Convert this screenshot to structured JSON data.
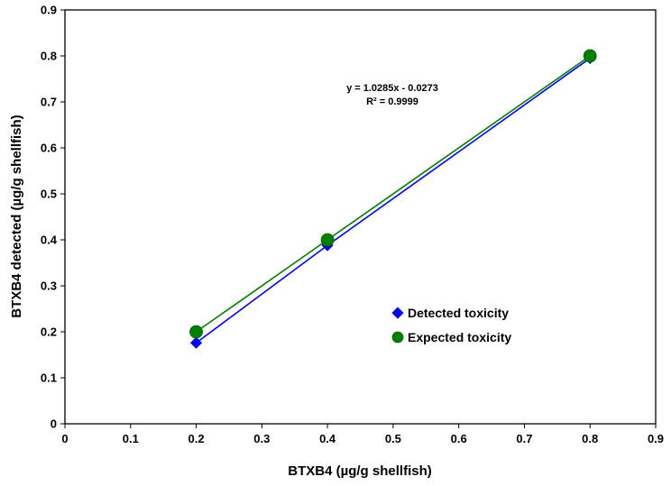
{
  "chart_data": {
    "type": "scatter",
    "title": "",
    "xlabel": "BTXB4 (µg/g shellfish)",
    "ylabel": "BTXB4 detected (µg/g shellfish)",
    "xlim": [
      0,
      0.9
    ],
    "ylim": [
      0,
      0.9
    ],
    "x_ticks": [
      "0",
      "0.1",
      "0.2",
      "0.3",
      "0.4",
      "0.5",
      "0.6",
      "0.7",
      "0.8",
      "0.9"
    ],
    "y_ticks": [
      "0",
      "0.1",
      "0.2",
      "0.3",
      "0.4",
      "0.5",
      "0.6",
      "0.7",
      "0.8",
      "0.9"
    ],
    "grid": false,
    "legend_position": "lower-right-inside",
    "series": [
      {
        "name": "Detected toxicity",
        "color": "#0000ff",
        "marker": "diamond",
        "x": [
          0.2,
          0.4,
          0.8
        ],
        "y": [
          0.176,
          0.388,
          0.795
        ]
      },
      {
        "name": "Expected toxicity",
        "color": "#008000",
        "marker": "circle",
        "x": [
          0.2,
          0.4,
          0.8
        ],
        "y": [
          0.2,
          0.4,
          0.8
        ]
      }
    ],
    "annotations": [
      "y = 1.0285x - 0.0273",
      "R² = 0.9999"
    ]
  }
}
